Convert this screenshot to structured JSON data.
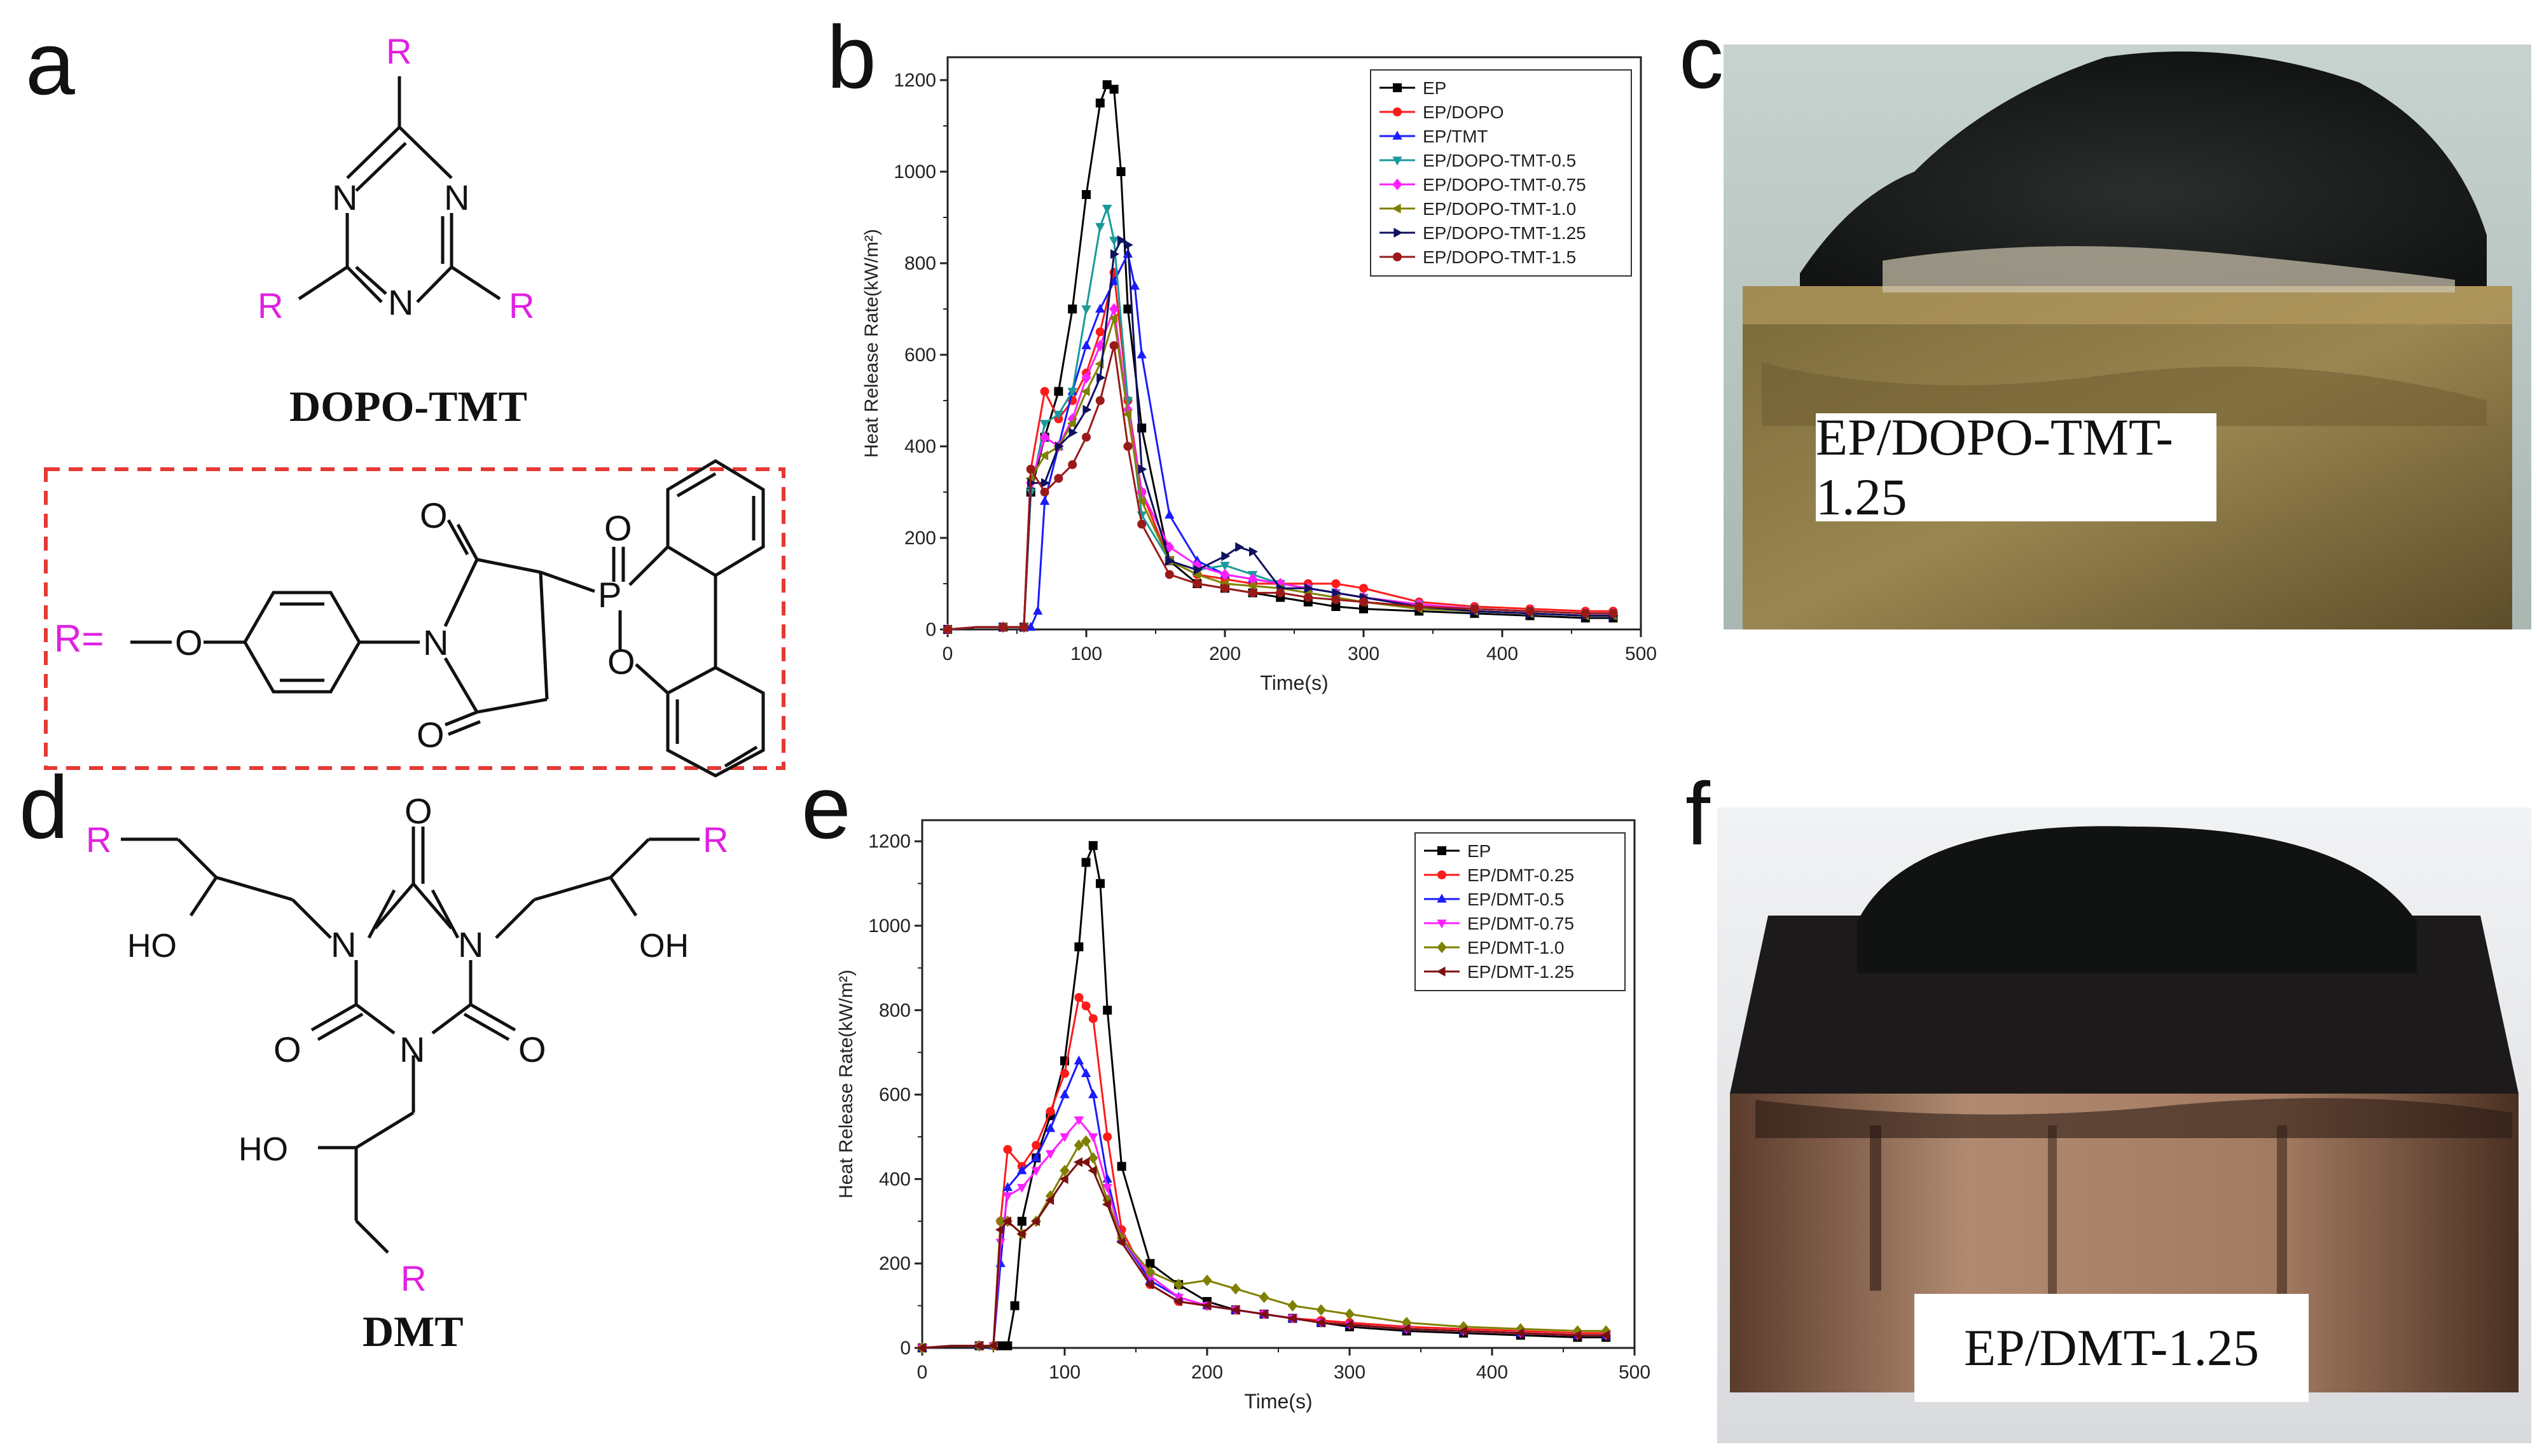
{
  "panels": {
    "a": {
      "letter": "a",
      "molecule_name": "DOPO-TMT",
      "r_label": "R",
      "r_eq": "R=",
      "atoms": {
        "N": "N",
        "O": "O",
        "P": "P"
      }
    },
    "b": {
      "letter": "b"
    },
    "c": {
      "letter": "c",
      "label": "EP/DOPO-TMT-1.25"
    },
    "d": {
      "letter": "d",
      "molecule_name": "DMT",
      "r_label": "R",
      "ho": "HO",
      "oh": "OH",
      "atoms": {
        "N": "N",
        "O": "O"
      }
    },
    "e": {
      "letter": "e"
    },
    "f": {
      "letter": "f",
      "label": "EP/DMT-1.25"
    }
  },
  "colors": {
    "r_group": "#e020e0",
    "dash_box": "#e53935"
  },
  "chart_data": [
    {
      "panel": "b",
      "type": "line",
      "xlabel": "Time(s)",
      "ylabel": "Heat Release Rate(kW/m²)",
      "xlim": [
        0,
        500
      ],
      "ylim": [
        0,
        1250
      ],
      "xticks": [
        0,
        100,
        200,
        300,
        400,
        500
      ],
      "yticks": [
        0,
        200,
        400,
        600,
        800,
        1000,
        1200
      ],
      "legend_position": "top-right",
      "series": [
        {
          "name": "EP",
          "color": "#000000",
          "marker": "square",
          "x": [
            0,
            20,
            40,
            55,
            60,
            70,
            80,
            90,
            100,
            110,
            115,
            120,
            125,
            130,
            140,
            160,
            180,
            200,
            220,
            240,
            260,
            280,
            300,
            340,
            380,
            420,
            460,
            480
          ],
          "y": [
            0,
            5,
            5,
            5,
            300,
            420,
            520,
            700,
            950,
            1150,
            1190,
            1180,
            1000,
            700,
            440,
            150,
            100,
            90,
            80,
            70,
            60,
            50,
            45,
            40,
            35,
            30,
            25,
            25
          ]
        },
        {
          "name": "EP/DOPO",
          "color": "#ff1a1a",
          "marker": "circle",
          "x": [
            0,
            20,
            40,
            55,
            60,
            70,
            80,
            90,
            100,
            110,
            120,
            130,
            140,
            160,
            180,
            200,
            220,
            240,
            260,
            280,
            300,
            340,
            380,
            420,
            460,
            480
          ],
          "y": [
            0,
            5,
            5,
            5,
            350,
            520,
            460,
            500,
            560,
            650,
            780,
            500,
            300,
            150,
            120,
            110,
            100,
            100,
            100,
            100,
            90,
            60,
            50,
            45,
            40,
            40
          ]
        },
        {
          "name": "EP/TMT",
          "color": "#1a1aff",
          "marker": "triangle",
          "x": [
            0,
            20,
            40,
            55,
            60,
            65,
            70,
            80,
            90,
            100,
            110,
            120,
            130,
            135,
            140,
            160,
            180,
            200,
            220,
            240,
            260,
            280,
            300,
            340,
            380,
            420,
            460,
            480
          ],
          "y": [
            0,
            5,
            5,
            5,
            5,
            40,
            280,
            400,
            520,
            620,
            700,
            760,
            820,
            750,
            600,
            250,
            150,
            120,
            110,
            100,
            90,
            80,
            70,
            50,
            40,
            35,
            30,
            30
          ]
        },
        {
          "name": "EP/DOPO-TMT-0.5",
          "color": "#1a9a9a",
          "marker": "triangle-down",
          "x": [
            0,
            20,
            40,
            55,
            60,
            70,
            80,
            90,
            100,
            110,
            115,
            120,
            130,
            140,
            160,
            180,
            200,
            220,
            240,
            260,
            280,
            300,
            340,
            380,
            420,
            460,
            480
          ],
          "y": [
            0,
            5,
            5,
            5,
            300,
            450,
            470,
            520,
            700,
            880,
            920,
            850,
            500,
            250,
            150,
            130,
            140,
            120,
            100,
            90,
            80,
            70,
            55,
            45,
            40,
            35,
            35
          ]
        },
        {
          "name": "EP/DOPO-TMT-0.75",
          "color": "#ff20ff",
          "marker": "diamond",
          "x": [
            0,
            20,
            40,
            55,
            60,
            70,
            80,
            90,
            100,
            110,
            120,
            130,
            140,
            160,
            180,
            200,
            220,
            240,
            260,
            280,
            300,
            340,
            380,
            420,
            460,
            480
          ],
          "y": [
            0,
            5,
            5,
            5,
            320,
            420,
            400,
            460,
            550,
            620,
            700,
            480,
            300,
            180,
            140,
            120,
            110,
            100,
            90,
            80,
            70,
            55,
            45,
            40,
            35,
            35
          ]
        },
        {
          "name": "EP/DOPO-TMT-1.0",
          "color": "#808000",
          "marker": "triangle-left",
          "x": [
            0,
            20,
            40,
            55,
            60,
            70,
            80,
            90,
            100,
            110,
            120,
            130,
            140,
            160,
            180,
            200,
            220,
            240,
            260,
            280,
            300,
            340,
            380,
            420,
            460,
            480
          ],
          "y": [
            0,
            5,
            5,
            5,
            330,
            380,
            400,
            450,
            520,
            580,
            680,
            470,
            280,
            150,
            120,
            100,
            95,
            90,
            80,
            70,
            60,
            45,
            40,
            35,
            30,
            30
          ]
        },
        {
          "name": "EP/DOPO-TMT-1.25",
          "color": "#101060",
          "marker": "triangle-right",
          "x": [
            0,
            20,
            40,
            55,
            60,
            70,
            80,
            90,
            100,
            110,
            120,
            125,
            130,
            140,
            160,
            180,
            200,
            210,
            220,
            240,
            260,
            280,
            300,
            340,
            380,
            420,
            460,
            480
          ],
          "y": [
            0,
            5,
            5,
            5,
            320,
            320,
            400,
            430,
            480,
            550,
            820,
            850,
            840,
            350,
            150,
            130,
            160,
            180,
            170,
            90,
            90,
            80,
            70,
            50,
            40,
            35,
            30,
            30
          ]
        },
        {
          "name": "EP/DOPO-TMT-1.5",
          "color": "#9a1a1a",
          "marker": "circle",
          "x": [
            0,
            20,
            40,
            55,
            60,
            70,
            80,
            90,
            100,
            110,
            120,
            130,
            140,
            160,
            180,
            200,
            220,
            240,
            260,
            280,
            300,
            340,
            380,
            420,
            460,
            480
          ],
          "y": [
            0,
            5,
            5,
            5,
            350,
            300,
            330,
            360,
            420,
            500,
            620,
            400,
            230,
            120,
            100,
            90,
            80,
            80,
            70,
            65,
            60,
            50,
            45,
            40,
            35,
            35
          ]
        }
      ]
    },
    {
      "panel": "e",
      "type": "line",
      "xlabel": "Time(s)",
      "ylabel": "Heat Release Rate(kW/m²)",
      "xlim": [
        0,
        500
      ],
      "ylim": [
        0,
        1250
      ],
      "xticks": [
        0,
        100,
        200,
        300,
        400,
        500
      ],
      "yticks": [
        0,
        200,
        400,
        600,
        800,
        1000,
        1200
      ],
      "legend_position": "top-right",
      "series": [
        {
          "name": "EP",
          "color": "#000000",
          "marker": "square",
          "x": [
            0,
            20,
            40,
            55,
            60,
            65,
            70,
            80,
            90,
            100,
            110,
            115,
            120,
            125,
            130,
            140,
            160,
            180,
            200,
            220,
            240,
            260,
            280,
            300,
            340,
            380,
            420,
            460,
            480
          ],
          "y": [
            0,
            5,
            5,
            5,
            5,
            100,
            300,
            450,
            550,
            680,
            950,
            1150,
            1190,
            1100,
            800,
            430,
            200,
            150,
            110,
            90,
            80,
            70,
            60,
            50,
            40,
            35,
            30,
            25,
            25
          ]
        },
        {
          "name": "EP/DMT-0.25",
          "color": "#ff1a1a",
          "marker": "circle",
          "x": [
            0,
            20,
            40,
            50,
            55,
            60,
            70,
            80,
            90,
            100,
            110,
            115,
            120,
            130,
            140,
            160,
            180,
            200,
            220,
            240,
            260,
            280,
            300,
            340,
            380,
            420,
            460,
            480
          ],
          "y": [
            0,
            5,
            5,
            5,
            300,
            470,
            430,
            480,
            560,
            650,
            830,
            810,
            780,
            500,
            280,
            150,
            110,
            100,
            90,
            80,
            70,
            65,
            60,
            50,
            45,
            40,
            35,
            35
          ]
        },
        {
          "name": "EP/DMT-0.5",
          "color": "#1a1aff",
          "marker": "triangle",
          "x": [
            0,
            20,
            40,
            50,
            55,
            60,
            70,
            80,
            90,
            100,
            110,
            115,
            120,
            130,
            140,
            160,
            180,
            200,
            220,
            240,
            260,
            280,
            300,
            340,
            380,
            420,
            460,
            480
          ],
          "y": [
            0,
            5,
            5,
            5,
            200,
            380,
            420,
            450,
            520,
            600,
            680,
            650,
            600,
            400,
            260,
            160,
            120,
            100,
            90,
            80,
            70,
            60,
            55,
            45,
            40,
            35,
            30,
            30
          ]
        },
        {
          "name": "EP/DMT-0.75",
          "color": "#ff20ff",
          "marker": "triangle-down",
          "x": [
            0,
            20,
            40,
            50,
            55,
            60,
            70,
            80,
            90,
            100,
            110,
            120,
            130,
            140,
            160,
            180,
            200,
            220,
            240,
            260,
            280,
            300,
            340,
            380,
            420,
            460,
            480
          ],
          "y": [
            0,
            5,
            5,
            5,
            250,
            360,
            380,
            420,
            460,
            500,
            540,
            500,
            380,
            260,
            170,
            120,
            100,
            90,
            80,
            70,
            60,
            55,
            45,
            40,
            35,
            30,
            30
          ]
        },
        {
          "name": "EP/DMT-1.0",
          "color": "#808000",
          "marker": "diamond",
          "x": [
            0,
            20,
            40,
            50,
            55,
            60,
            70,
            80,
            90,
            100,
            110,
            115,
            120,
            130,
            140,
            160,
            180,
            200,
            220,
            240,
            260,
            280,
            300,
            340,
            380,
            420,
            460,
            480
          ],
          "y": [
            0,
            5,
            5,
            5,
            300,
            300,
            270,
            300,
            360,
            420,
            480,
            490,
            450,
            350,
            260,
            180,
            150,
            160,
            140,
            120,
            100,
            90,
            80,
            60,
            50,
            45,
            40,
            40
          ]
        },
        {
          "name": "EP/DMT-1.25",
          "color": "#7a1010",
          "marker": "triangle-left",
          "x": [
            0,
            20,
            40,
            50,
            55,
            60,
            70,
            80,
            90,
            100,
            110,
            115,
            120,
            130,
            140,
            160,
            180,
            200,
            220,
            240,
            260,
            280,
            300,
            340,
            380,
            420,
            460,
            480
          ],
          "y": [
            0,
            5,
            5,
            5,
            280,
            300,
            270,
            300,
            350,
            400,
            440,
            440,
            420,
            340,
            250,
            150,
            110,
            100,
            90,
            80,
            70,
            60,
            55,
            45,
            40,
            35,
            30,
            30
          ]
        }
      ]
    }
  ]
}
